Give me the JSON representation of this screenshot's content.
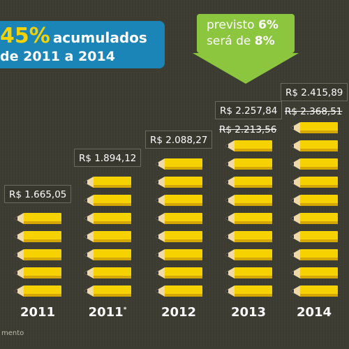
{
  "headline": {
    "pct": "45%",
    "line1_rest": "acumulados",
    "line2": "de 2011 a 2014"
  },
  "callout": {
    "line1_prefix": "previsto",
    "line1_value": "6%",
    "line2_prefix": "será de",
    "line2_value": "8%"
  },
  "chart_data": {
    "type": "bar",
    "categories": [
      "2011",
      "2011*",
      "2012",
      "2013",
      "2014"
    ],
    "series": [
      {
        "values": [
          1665.05,
          1894.12,
          2088.27,
          2257.84,
          2415.89
        ]
      },
      {
        "values": [
          null,
          null,
          null,
          2213.56,
          2368.51
        ]
      }
    ],
    "labels": [
      "R$ 1.665,05",
      "R$ 1.894,12",
      "R$ 2.088,27",
      "R$ 2.257,84",
      "R$ 2.415,89"
    ],
    "struck_labels": [
      "",
      "",
      "",
      "R$ 2.213,56",
      "R$ 2.368,51"
    ],
    "pencil_counts": [
      5,
      7,
      8,
      9,
      10
    ],
    "colors": {
      "pencil": "#f5d200",
      "pencil_dark": "#d4a800",
      "wood": "#f0d9a8",
      "lead": "#333333"
    }
  },
  "footer": {
    "source_fragment": "mento"
  }
}
